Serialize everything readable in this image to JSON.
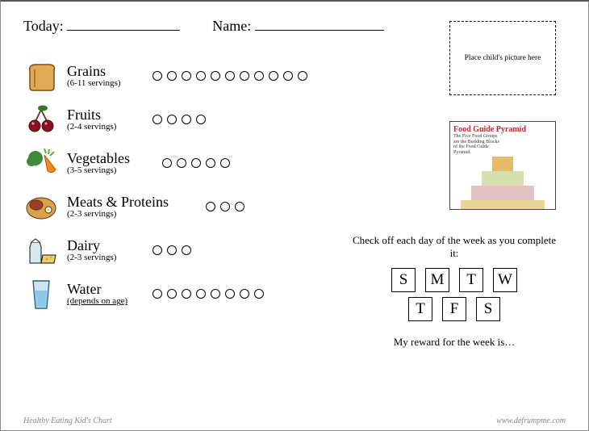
{
  "header": {
    "today_label": "Today:",
    "name_label": "Name:",
    "today_line_width": 140,
    "name_line_width": 160
  },
  "picture_box": {
    "text": "Place child's picture here"
  },
  "foods": [
    {
      "key": "grains",
      "name": "Grains",
      "servings": "(6-11 servings)",
      "circle_count": 11,
      "underline_servings": false,
      "label_width": 88,
      "icon": {
        "type": "bread",
        "fill": "#e0a953",
        "stroke": "#7a4a12"
      }
    },
    {
      "key": "fruits",
      "name": "Fruits",
      "servings": "(2-4 servings)",
      "circle_count": 4,
      "underline_servings": false,
      "label_width": 88,
      "icon": {
        "type": "cherries",
        "fill": "#8c0f1f",
        "leaf": "#2f7a2a",
        "stroke": "#3a0808"
      }
    },
    {
      "key": "vegetables",
      "name": "Vegetables",
      "servings": "(3-5 servings)",
      "circle_count": 5,
      "underline_servings": false,
      "label_width": 100,
      "icon": {
        "type": "veggies",
        "carrot": "#f28a1f",
        "broccoli": "#3d8c3d",
        "leaf": "#5fae4a"
      }
    },
    {
      "key": "meats",
      "name": "Meats & Proteins",
      "servings": "(2-3 servings)",
      "circle_count": 3,
      "underline_servings": false,
      "label_width": 154,
      "icon": {
        "type": "meat",
        "fill": "#d9a24a",
        "steak": "#a33b2b",
        "stroke": "#5a3310"
      }
    },
    {
      "key": "dairy",
      "name": "Dairy",
      "servings": "(2-3 servings)",
      "circle_count": 3,
      "underline_servings": false,
      "label_width": 88,
      "icon": {
        "type": "dairy",
        "carton": "#d9e7ee",
        "cheese": "#efce6a",
        "stroke": "#111"
      }
    },
    {
      "key": "water",
      "name": "Water",
      "servings": "(depends on age)",
      "circle_count": 8,
      "underline_servings": true,
      "label_width": 88,
      "icon": {
        "type": "glass",
        "water": "#8fc9e8",
        "glass": "#c9e4f2",
        "stroke": "#2a5f7a"
      }
    }
  ],
  "pyramid": {
    "title": "Food Guide Pyramid",
    "subtitle": "The Five Food Groups are the Building Blocks of the Food Guide Pyramid.",
    "bands": [
      {
        "color": "#e8b96a"
      },
      {
        "color": "#d6dfae"
      },
      {
        "color": "#e3c2c2"
      },
      {
        "color": "#e8d69a"
      }
    ]
  },
  "days": {
    "instruction": "Check off each day of the week as you complete it:",
    "row1": [
      "S",
      "M",
      "T",
      "W"
    ],
    "row2": [
      "T",
      "F",
      "S"
    ],
    "reward": "My reward for the week is…"
  },
  "footer": {
    "left": "Healthy Eating Kid's Chart",
    "right": "www.defrumpme.com"
  },
  "colors": {
    "text": "#000000",
    "muted": "#888888",
    "background": "#ffffff"
  }
}
